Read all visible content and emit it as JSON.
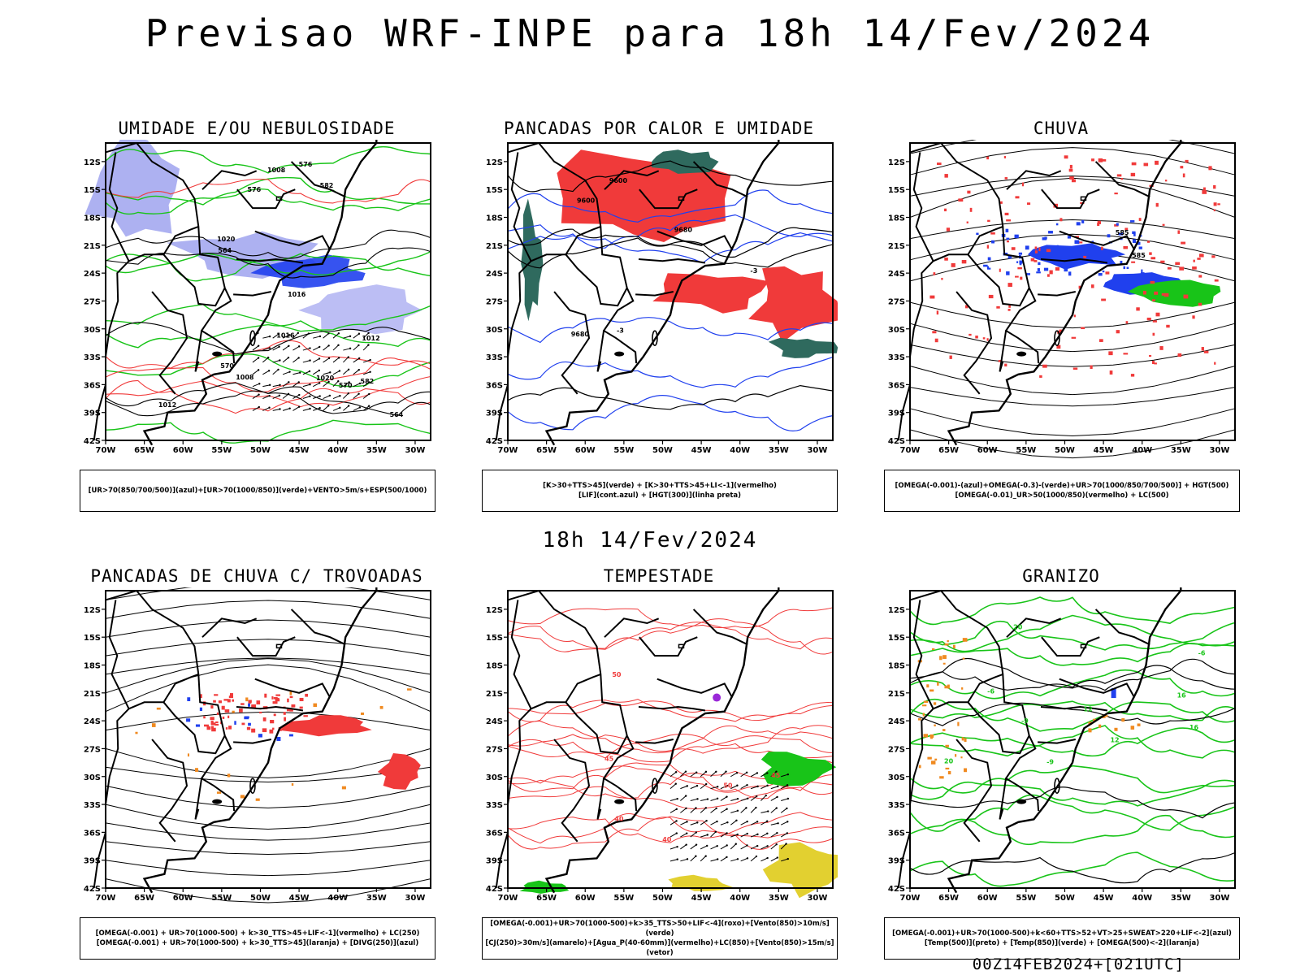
{
  "header": {
    "title": "Previsao WRF-INPE  para 18h 14/Fev/2024"
  },
  "middle": {
    "title": "18h 14/Fev/2024"
  },
  "footer": {
    "run": "00Z14FEB2024+[021UTC]"
  },
  "map_axes": {
    "lat_labels": [
      "12S",
      "15S",
      "18S",
      "21S",
      "24S",
      "27S",
      "30S",
      "33S",
      "36S",
      "39S",
      "42S"
    ],
    "lon_labels": [
      "70W",
      "65W",
      "60W",
      "55W",
      "50W",
      "45W",
      "40W",
      "35W",
      "30W"
    ]
  },
  "colors": {
    "blue_light": "#9fa3ef",
    "blue": "#2040ee",
    "green": "#18c418",
    "red": "#f03a3a",
    "orange": "#f08a20",
    "yellow": "#e2d030",
    "darkgreen": "#2f6a5e",
    "purple": "#9a28d8",
    "black": "#000000"
  },
  "panels": [
    {
      "id": "umidade",
      "title": "UMIDADE E/OU NEBULOSIDADE",
      "legend": [
        "[UR>70(850/700/500)](azul)+[UR>70(1000/850)](verde)+VENTO>5m/s+ESP(500/1000)"
      ],
      "contour_labels": [
        "1012",
        "1016",
        "576",
        "582",
        "570",
        "564",
        "1008",
        "1020"
      ]
    },
    {
      "id": "pancadas-calor",
      "title": "PANCADAS POR CALOR E UMIDADE",
      "legend": [
        "[K>30+TTS>45](verde) + [K>30+TTS>45+LI<-1](vermelho)",
        "[LIF](cont.azul) + [HGT(300)](linha preta)"
      ],
      "contour_labels": [
        "9680",
        "9600",
        "-3"
      ]
    },
    {
      "id": "chuva",
      "title": "CHUVA",
      "legend": [
        "[OMEGA(-0.001)-(azul)+OMEGA(-0.3)-(verde)+UR>70(1000/850/700/500)] + HGT(500)",
        "[OMEGA(-0.01)_UR>50(1000/850)(vermelho) + LC(500)"
      ],
      "contour_labels": [
        "585"
      ]
    },
    {
      "id": "pancadas-trovoadas",
      "title": "PANCADAS DE CHUVA C/ TROVOADAS",
      "legend": [
        "[OMEGA(-0.001) + UR>70(1000-500) + k>30_TTS>45+LIF<-1](vermelho) + LC(250)",
        "[OMEGA(-0.001) + UR>70(1000-500) + k>30_TTS>45](laranja) + [DIVG(250)](azul)"
      ],
      "contour_labels": []
    },
    {
      "id": "tempestade",
      "title": "TEMPESTADE",
      "legend": [
        "[OMEGA(-0.001)+UR>70(1000-500)+k>35_TTS>50+LIF<-4](roxo)+[Vento(850)>10m/s](verde)",
        "[CJ(250)>30m/s](amarelo)+[Agua_P(40-60mm)](vermelho)+LC(850)+[Vento(850)>15m/s](vetor)"
      ],
      "contour_labels": [
        "40",
        "45",
        "50"
      ]
    },
    {
      "id": "granizo",
      "title": "GRANIZO",
      "legend": [
        "[OMEGA(-0.001)+UR>70(1000-500)+k<60+TTS>52+VT>25+SWEAT>220+LIF<-2](azul)",
        "[Temp(500)](preto) + [Temp(850)](verde) + [OMEGA(500)<-2](laranja)"
      ],
      "contour_labels": [
        "-6",
        "-9",
        "12",
        "16",
        "20"
      ]
    }
  ]
}
